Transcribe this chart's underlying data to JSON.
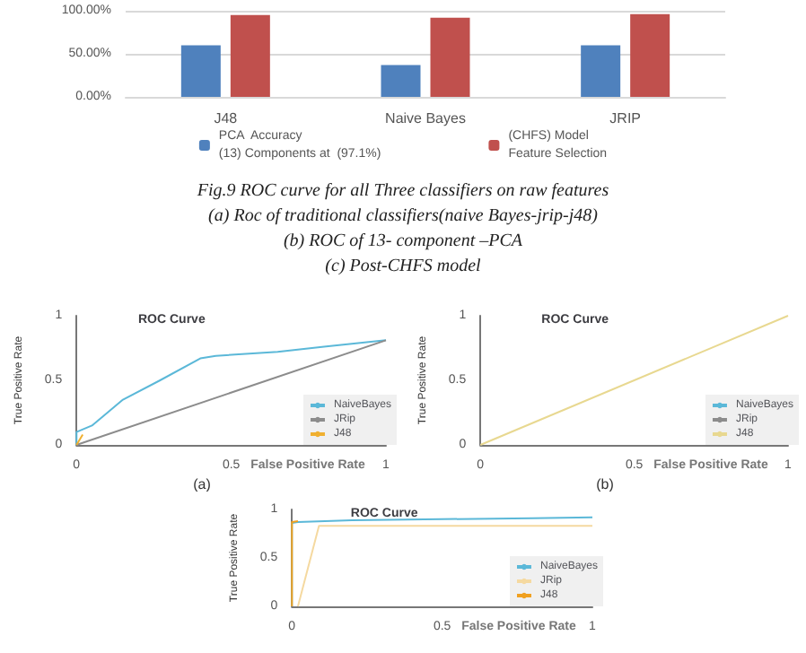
{
  "chart_data": [
    {
      "type": "bar",
      "categories": [
        "J48",
        "Naive Bayes",
        "JRIP"
      ],
      "series": [
        {
          "name": "PCA  Accuracy\n(13) Components at  (97.1%)",
          "color": "#4f81bd",
          "values": [
            60,
            37,
            60
          ]
        },
        {
          "name": "(CHFS) Model\nFeature Selection",
          "color": "#c0504d",
          "values": [
            95,
            92,
            96
          ]
        }
      ],
      "ylim": [
        0,
        100
      ],
      "yticks": [
        {
          "value": 0,
          "label": "0.00%"
        },
        {
          "value": 50,
          "label": "50.00%"
        },
        {
          "value": 100,
          "label": "100.00%"
        }
      ],
      "grid": "y",
      "legend": "bottom"
    },
    {
      "type": "other",
      "annotations": [
        "Fig.9 ROC curve for all Three classifiers on raw features",
        "(a) Roc of  traditional classifiers(naive Bayes-jrip-j48)",
        "(b) ROC of 13- component –PCA",
        "(c) Post-CHFS model"
      ]
    },
    {
      "type": "line",
      "title": "ROC Curve",
      "xlabel": "False Positive Rate",
      "ylabel": "True Positive Rate",
      "annotations": [
        "(a)"
      ],
      "xlim": [
        0,
        1
      ],
      "ylim": [
        0,
        1
      ],
      "xticks": [
        0,
        0.5,
        1
      ],
      "yticks": [
        0,
        0.5,
        1
      ],
      "legend": "bottom right",
      "grid": false,
      "series": [
        {
          "name": "NaiveBayes",
          "color": "#5bb8d8",
          "x": [
            0,
            0,
            0.05,
            0.15,
            0.27,
            0.4,
            0.45,
            0.65,
            0.8,
            1
          ],
          "values": [
            0,
            0.1,
            0.15,
            0.35,
            0.5,
            0.67,
            0.69,
            0.72,
            0.76,
            0.81
          ]
        },
        {
          "name": "JRip",
          "color": "#8c8c8c",
          "x": [
            0,
            1
          ],
          "values": [
            0,
            0.81
          ]
        },
        {
          "name": "J48",
          "color": "#f0b030",
          "x": [
            0,
            0.02
          ],
          "values": [
            0,
            0.08
          ]
        }
      ]
    },
    {
      "type": "line",
      "title": "ROC Curve",
      "xlabel": "False Positive Rate",
      "ylabel": "True Positive Rate",
      "annotations": [
        "(b)"
      ],
      "xlim": [
        0,
        1
      ],
      "ylim": [
        0,
        1
      ],
      "xticks": [
        0,
        0.5,
        1
      ],
      "yticks": [
        0,
        0.5,
        1
      ],
      "legend": "bottom right",
      "grid": false,
      "series": [
        {
          "name": "NaiveBayes",
          "color": "#5bb8d8"
        },
        {
          "name": "JRip",
          "color": "#8c8c8c"
        },
        {
          "name": "J48",
          "color": "#e8d890",
          "x": [
            0,
            1
          ],
          "values": [
            0,
            1
          ]
        }
      ]
    },
    {
      "type": "line",
      "title": "ROC Curve",
      "xlabel": "False Positive Rate",
      "ylabel": "True Positive Rate",
      "xlim": [
        0,
        1
      ],
      "ylim": [
        0,
        1
      ],
      "xticks": [
        0,
        0.5,
        1
      ],
      "yticks": [
        0,
        0.5,
        1
      ],
      "legend": "bottom right",
      "grid": false,
      "series": [
        {
          "name": "NaiveBayes",
          "color": "#5bb8d8",
          "x": [
            0,
            0,
            0.02,
            0.2,
            0.5,
            0.8,
            1
          ],
          "values": [
            0,
            0.86,
            0.87,
            0.89,
            0.9,
            0.91,
            0.92
          ]
        },
        {
          "name": "JRip",
          "color": "#f5d9a0",
          "x": [
            0.02,
            0.09,
            1
          ],
          "values": [
            0,
            0.83,
            0.83
          ]
        },
        {
          "name": "J48",
          "color": "#f0a020",
          "x": [
            0,
            0,
            0.02
          ],
          "values": [
            0,
            0.87,
            0.88
          ]
        }
      ]
    }
  ]
}
